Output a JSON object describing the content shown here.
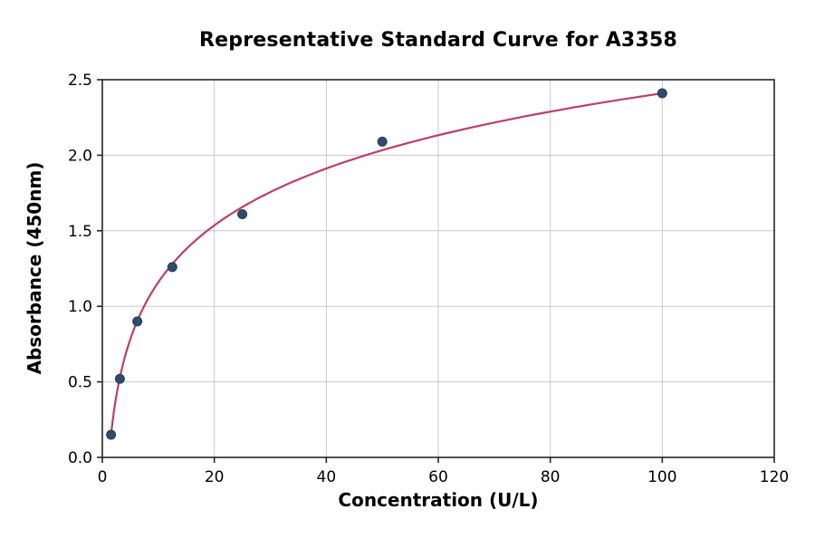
{
  "chart_data": {
    "type": "scatter",
    "title": "Representative Standard Curve for A3358",
    "xlabel": "Concentration (U/L)",
    "ylabel": "Absorbance (450nm)",
    "x": [
      1.56,
      3.13,
      6.25,
      12.5,
      25,
      50,
      100
    ],
    "y": [
      0.15,
      0.52,
      0.9,
      1.26,
      1.61,
      2.09,
      2.41
    ],
    "fit_curve": {
      "type": "logarithmic",
      "start_point": [
        1.56,
        0.15
      ],
      "end_point": [
        100,
        2.41
      ]
    },
    "xlim": [
      0,
      120
    ],
    "ylim": [
      0,
      2.5
    ],
    "xticks": {
      "values": [
        0,
        20,
        40,
        60,
        80,
        100,
        120
      ],
      "labels": [
        "0",
        "20",
        "40",
        "60",
        "80",
        "100",
        "120"
      ]
    },
    "yticks": {
      "values": [
        0,
        0.5,
        1.0,
        1.5,
        2.0,
        2.5
      ],
      "labels": [
        "0.0",
        "0.5",
        "1.0",
        "1.5",
        "2.0",
        "2.5"
      ]
    },
    "grid": true,
    "legend_position": "none",
    "colors": {
      "point": "#2e4d6e",
      "point_edge": "#243c58",
      "line": "#bd3f63",
      "grid": "#c9c9c9",
      "spine": "#262626",
      "text": "#000000",
      "background": "#ffffff"
    }
  }
}
